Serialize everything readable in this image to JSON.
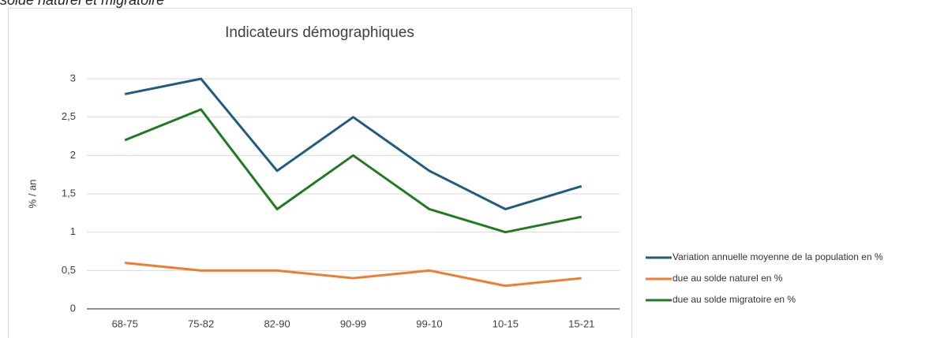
{
  "caption": "solde naturel et migratoire",
  "chart_data": {
    "type": "line",
    "title": "Indicateurs démographiques",
    "y_label": "% / an",
    "categories": [
      "68-75",
      "75-82",
      "82-90",
      "90-99",
      "99-10",
      "10-15",
      "15-21"
    ],
    "series": [
      {
        "name": "Variation annuelle moyenne de la population en %",
        "color": "#1f5c80",
        "values": [
          2.8,
          3.0,
          1.8,
          2.5,
          1.8,
          1.3,
          1.6
        ]
      },
      {
        "name": "due au solde naturel en %",
        "color": "#ed7d31",
        "values": [
          0.6,
          0.5,
          0.5,
          0.4,
          0.5,
          0.3,
          0.4
        ]
      },
      {
        "name": "due au solde migratoire en %",
        "color": "#217a21",
        "values": [
          2.2,
          2.6,
          1.3,
          2.0,
          1.3,
          1.0,
          1.2
        ]
      }
    ],
    "ylim": [
      0,
      3
    ],
    "yticks": [
      0,
      {
        "value": 0.5,
        "label": "0,5"
      },
      1,
      {
        "value": 1.5,
        "label": "1,5"
      },
      2,
      {
        "value": 2.5,
        "label": "2,5"
      },
      3
    ],
    "grid": true,
    "legend": "right"
  }
}
